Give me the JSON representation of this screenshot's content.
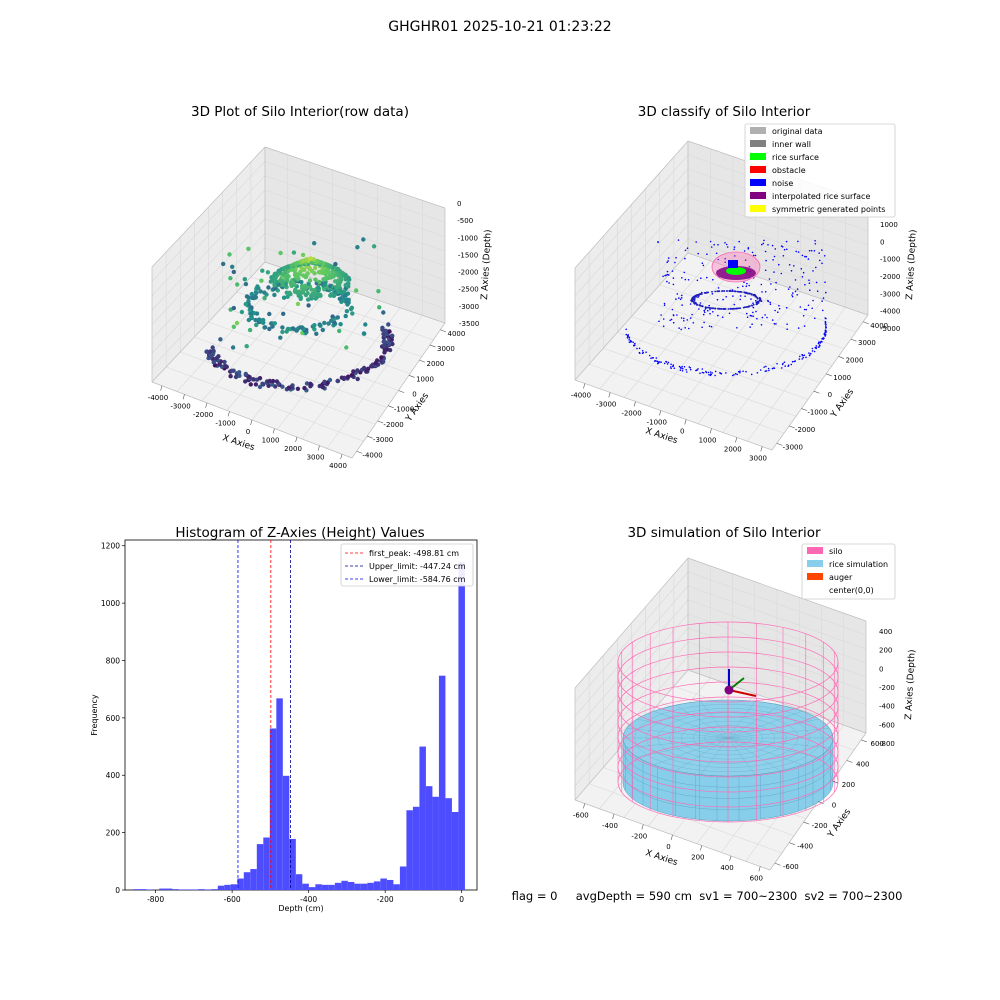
{
  "suptitle": "GHGHR01 2025-10-21 01:23:22",
  "status_text": "flag = 0     avgDepth = 590 cm  sv1 = 700~2300  sv2 = 700~2300",
  "chart_data": [
    {
      "type": "scatter",
      "title": "3D Plot of Silo Interior(row data)",
      "xlabel": "X Axies",
      "ylabel": "Y Axies",
      "zlabel": "Z Axies (Depth)",
      "x_ticks": [
        "-4000",
        "-3000",
        "-2000",
        "-1000",
        "0",
        "1000",
        "2000",
        "3000",
        "4000"
      ],
      "y_ticks": [
        "-4000",
        "-3000",
        "-2000",
        "-1000",
        "0",
        "1000",
        "2000",
        "3000",
        "4000"
      ],
      "z_ticks": [
        "0",
        "-500",
        "-1000",
        "-1500",
        "-2000",
        "-2500",
        "-3000",
        "-3500"
      ],
      "xlim": [
        -4000,
        4000
      ],
      "ylim": [
        -4000,
        4000
      ],
      "zlim": [
        -3800,
        300
      ],
      "colormap": "viridis",
      "shape": "rice mound around center with points spread down the silo wall"
    },
    {
      "type": "scatter",
      "title": "3D classify of Silo Interior",
      "xlabel": "X Axies",
      "ylabel": "Y Axies",
      "zlabel": "Z Axies (Depth)",
      "x_ticks": [
        "-4000",
        "-3000",
        "-2000",
        "-1000",
        "0",
        "1000",
        "2000",
        "3000"
      ],
      "y_ticks": [
        "-3000",
        "-2000",
        "-1000",
        "0",
        "1000",
        "2000",
        "3000",
        "4000"
      ],
      "z_ticks": [
        "1000",
        "0",
        "-1000",
        "-2000",
        "-3000",
        "-4000",
        "-5000"
      ],
      "xlim": [
        -4000,
        3500
      ],
      "ylim": [
        -3500,
        4000
      ],
      "zlim": [
        -5500,
        1500
      ],
      "legend_position": "top-right",
      "legend": [
        {
          "label": "original data",
          "color": "#b0b0b0"
        },
        {
          "label": "inner wall",
          "color": "#808080"
        },
        {
          "label": "rice surface",
          "color": "#00ff00"
        },
        {
          "label": "obstacle",
          "color": "#ff0000"
        },
        {
          "label": "noise",
          "color": "#0000ff"
        },
        {
          "label": "interpolated rice surface",
          "color": "#800080"
        },
        {
          "label": "symmetric generated points",
          "color": "#ffff00"
        }
      ]
    },
    {
      "type": "bar",
      "title": "Histogram of Z-Axies (Height) Values",
      "xlabel": "Depth (cm)",
      "ylabel": "Frequency",
      "xlim": [
        -880,
        40
      ],
      "ylim": [
        0,
        1220
      ],
      "x_ticks": [
        -800,
        -600,
        -400,
        -200,
        0
      ],
      "y_ticks": [
        0,
        200,
        400,
        600,
        800,
        1000,
        1200
      ],
      "bar_color": "#4d4dff",
      "bin_width": 15,
      "bins": [
        {
          "x": -850,
          "count": 3
        },
        {
          "x": -835,
          "count": 3
        },
        {
          "x": -820,
          "count": 2
        },
        {
          "x": -805,
          "count": 0
        },
        {
          "x": -790,
          "count": 5
        },
        {
          "x": -775,
          "count": 5
        },
        {
          "x": -760,
          "count": 3
        },
        {
          "x": -745,
          "count": 2
        },
        {
          "x": -730,
          "count": 2
        },
        {
          "x": -715,
          "count": 2
        },
        {
          "x": -700,
          "count": 3
        },
        {
          "x": -685,
          "count": 2
        },
        {
          "x": -670,
          "count": 3
        },
        {
          "x": -655,
          "count": 15
        },
        {
          "x": -640,
          "count": 18
        },
        {
          "x": -625,
          "count": 20
        },
        {
          "x": -610,
          "count": 40
        },
        {
          "x": -595,
          "count": 62
        },
        {
          "x": -580,
          "count": 73
        },
        {
          "x": -565,
          "count": 160
        },
        {
          "x": -550,
          "count": 183
        },
        {
          "x": -535,
          "count": 563
        },
        {
          "x": -520,
          "count": 668
        },
        {
          "x": -505,
          "count": 398
        },
        {
          "x": -490,
          "count": 178
        },
        {
          "x": -475,
          "count": 55
        },
        {
          "x": -460,
          "count": 22
        },
        {
          "x": -445,
          "count": 10
        },
        {
          "x": -430,
          "count": 20
        },
        {
          "x": -415,
          "count": 18
        },
        {
          "x": -400,
          "count": 18
        },
        {
          "x": -385,
          "count": 25
        },
        {
          "x": -370,
          "count": 32
        },
        {
          "x": -355,
          "count": 28
        },
        {
          "x": -340,
          "count": 22
        },
        {
          "x": -325,
          "count": 22
        },
        {
          "x": -310,
          "count": 25
        },
        {
          "x": -295,
          "count": 30
        },
        {
          "x": -280,
          "count": 40
        },
        {
          "x": -265,
          "count": 35
        },
        {
          "x": -250,
          "count": 20
        },
        {
          "x": -235,
          "count": 82
        },
        {
          "x": -220,
          "count": 278
        },
        {
          "x": -205,
          "count": 290
        },
        {
          "x": -190,
          "count": 500
        },
        {
          "x": -175,
          "count": 362
        },
        {
          "x": -160,
          "count": 325
        },
        {
          "x": -145,
          "count": 747
        },
        {
          "x": -130,
          "count": 320
        },
        {
          "x": -115,
          "count": 272
        },
        {
          "x": -100,
          "count": 1143
        }
      ],
      "lines": [
        {
          "label": "first_peak: -498.81 cm",
          "value": -498.81,
          "color": "#ff0000"
        },
        {
          "label": "Upper_limit: -447.24 cm",
          "value": -447.24,
          "color": "#00008b"
        },
        {
          "label": "Lower_limit: -584.76 cm",
          "value": -584.76,
          "color": "#0000ff"
        }
      ],
      "legend_position": "top-right"
    },
    {
      "type": "surface",
      "title": "3D simulation of Silo Interior",
      "xlabel": "X Axies",
      "ylabel": "Y Axies",
      "zlabel": "Z Axies (Depth)",
      "x_ticks": [
        "-600",
        "-400",
        "-200",
        "0",
        "200",
        "400",
        "600"
      ],
      "y_ticks": [
        "-600",
        "-400",
        "-200",
        "0",
        "200",
        "400",
        "600"
      ],
      "z_ticks": [
        "400",
        "200",
        "0",
        "-200",
        "-400",
        "-600",
        "-800"
      ],
      "xlim": [
        -700,
        700
      ],
      "ylim": [
        -700,
        700
      ],
      "zlim": [
        -900,
        500
      ],
      "legend_position": "top-right",
      "legend": [
        {
          "label": "silo",
          "color": "#ff69b4"
        },
        {
          "label": "rice simulation",
          "color": "#87ceeb"
        },
        {
          "label": "auger",
          "color": "#ff4500"
        },
        {
          "label": "center(0,0)",
          "color": "#ffffff"
        }
      ]
    }
  ]
}
